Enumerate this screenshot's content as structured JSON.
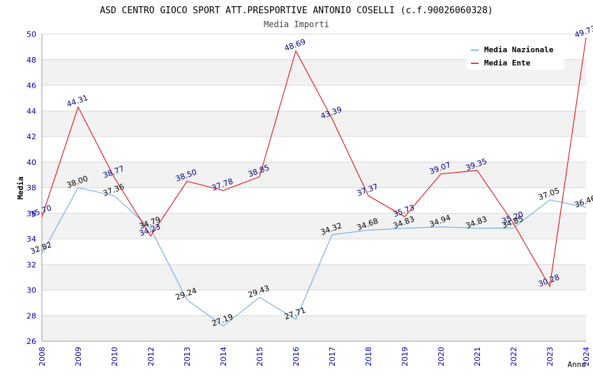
{
  "chart_data": {
    "type": "line",
    "title": "ASD CENTRO GIOCO SPORT ATT.PRESPORTIVE ANTONIO COSELLI (c.f.90026060328)",
    "subtitle": "Media Importi",
    "xlabel": "Anno",
    "ylabel": "Media",
    "ylim": [
      26,
      50
    ],
    "yticks": [
      26,
      28,
      30,
      32,
      34,
      36,
      38,
      40,
      42,
      44,
      46,
      48,
      50
    ],
    "grid": true,
    "legend_position": "top-right",
    "categories": [
      "2008",
      "2009",
      "2010",
      "2012",
      "2013",
      "2014",
      "2015",
      "2016",
      "2017",
      "2018",
      "2019",
      "2020",
      "2021",
      "2022",
      "2023",
      "2024"
    ],
    "series": [
      {
        "name": "Media Nazionale",
        "color": "#5da5e8",
        "label_color": "#000000",
        "values": [
          32.82,
          38.0,
          37.36,
          34.79,
          29.24,
          27.19,
          29.43,
          27.71,
          34.32,
          34.68,
          34.83,
          34.94,
          34.83,
          34.85,
          37.05,
          36.46
        ]
      },
      {
        "name": "Media Ente",
        "color": "#dd0000",
        "label_color": "#000080",
        "values": [
          35.7,
          44.31,
          38.77,
          34.23,
          38.5,
          37.78,
          38.85,
          48.69,
          43.39,
          37.37,
          35.73,
          39.07,
          39.35,
          35.2,
          30.28,
          49.73
        ]
      }
    ]
  },
  "colors": {
    "band": "#f2f2f2",
    "gridline": "#d9d9d9",
    "axis_tick_text": "#0000aa"
  }
}
